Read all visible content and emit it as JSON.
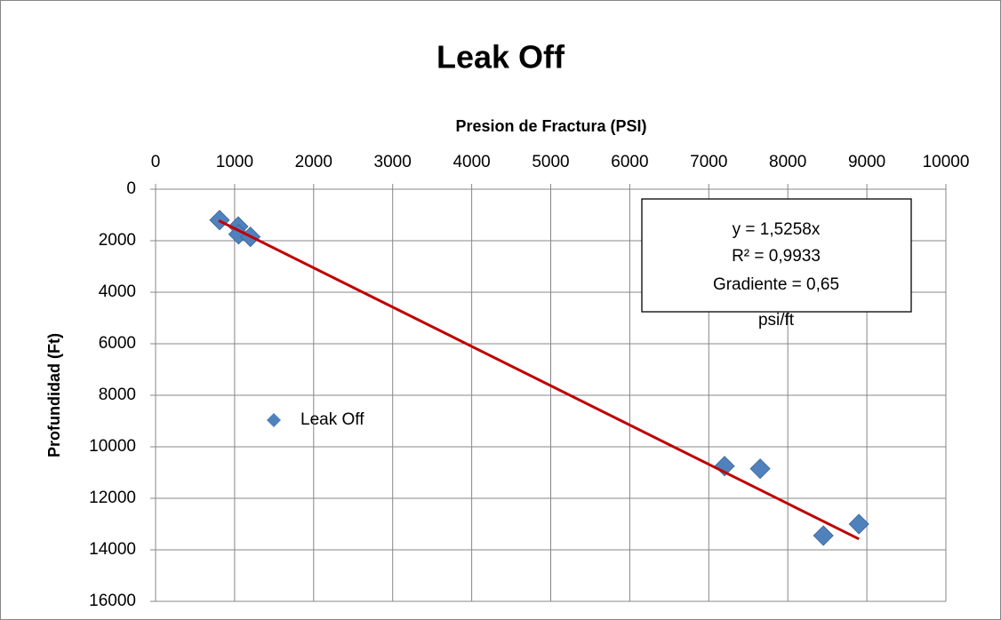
{
  "chart_data": {
    "type": "scatter",
    "title": "Leak Off",
    "x_label": "Presion de Fractura (PSI)",
    "y_label": "Profundidad (Ft)",
    "series": [
      {
        "name": "Leak Off",
        "color": "#4f81bd",
        "x": [
          810,
          1046,
          1050,
          1200,
          7200,
          7650,
          8450,
          8900
        ],
        "values": [
          1200,
          1450,
          1750,
          1850,
          10750,
          10850,
          13450,
          13000
        ]
      }
    ],
    "trendline": {
      "color": "#c00000",
      "x": [
        800,
        8900
      ],
      "y": [
        1220,
        13580
      ]
    },
    "annotation": [
      "y = 1,5258x",
      "R² = 0,9933",
      "Gradiente = 0,65",
      "psi/ft"
    ],
    "xlim": [
      0,
      10000
    ],
    "xticks": [
      0,
      1000,
      2000,
      3000,
      4000,
      5000,
      6000,
      7000,
      8000,
      9000,
      10000
    ],
    "ylim": [
      0,
      16000
    ],
    "yticks": [
      0,
      2000,
      4000,
      6000,
      8000,
      10000,
      12000,
      14000,
      16000
    ],
    "y_inverted": true,
    "x_axis_position": "top",
    "grid": true,
    "legend": "left"
  }
}
